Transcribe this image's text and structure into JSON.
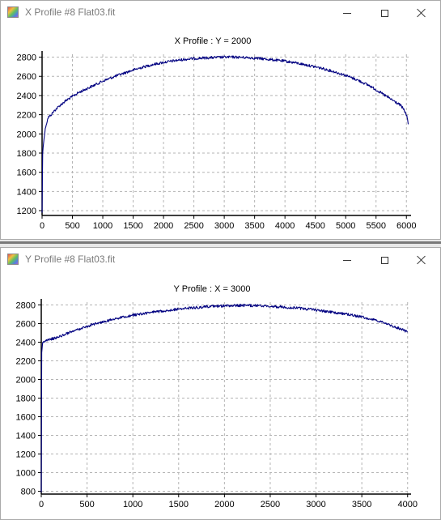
{
  "windows": [
    {
      "id": "x",
      "title": "X Profile #8 Flat03.fit",
      "chart_data": {
        "type": "line",
        "title": "X Profile :    Y = 2000",
        "xlabel": "",
        "ylabel": "",
        "xlim": [
          0,
          6050
        ],
        "ylim": [
          1150,
          2830
        ],
        "xticks": [
          0,
          500,
          1000,
          1500,
          2000,
          2500,
          3000,
          3500,
          4000,
          4500,
          5000,
          5500,
          6000
        ],
        "yticks": [
          1200,
          1400,
          1600,
          1800,
          2000,
          2200,
          2400,
          2600,
          2800
        ],
        "grid": true,
        "legend": "none",
        "line_color": "#000080",
        "series": [
          {
            "x": [
              0,
              10,
              30,
              60,
              100,
              150,
              200,
              300,
              400,
              500,
              600,
              700,
              800,
              900,
              1000,
              1200,
              1400,
              1600,
              1800,
              2000,
              2200,
              2400,
              2600,
              2800,
              3000,
              3200,
              3400,
              3600,
              3800,
              4000,
              4200,
              4400,
              4600,
              4800,
              5000,
              5200,
              5400,
              5600,
              5700,
              5800,
              5900,
              5950,
              6000,
              6020,
              6030
            ],
            "y": [
              1180,
              1800,
              1950,
              2080,
              2170,
              2200,
              2240,
              2300,
              2350,
              2390,
              2430,
              2460,
              2490,
              2520,
              2550,
              2600,
              2645,
              2685,
              2720,
              2745,
              2765,
              2780,
              2790,
              2795,
              2800,
              2800,
              2795,
              2785,
              2772,
              2758,
              2738,
              2712,
              2685,
              2650,
              2610,
              2560,
              2500,
              2420,
              2380,
              2340,
              2300,
              2260,
              2200,
              2150,
              2100
            ]
          }
        ]
      }
    },
    {
      "id": "y",
      "title": "Y Profile #8 Flat03.fit",
      "chart_data": {
        "type": "line",
        "title": "Y Profile :    X = 3000",
        "xlabel": "",
        "ylabel": "",
        "xlim": [
          0,
          4020
        ],
        "ylim": [
          770,
          2830
        ],
        "xticks": [
          0,
          500,
          1000,
          1500,
          2000,
          2500,
          3000,
          3500,
          4000
        ],
        "yticks": [
          800,
          1000,
          1200,
          1400,
          1600,
          1800,
          2000,
          2200,
          2400,
          2600,
          2800
        ],
        "grid": true,
        "legend": "none",
        "line_color": "#000080",
        "series": [
          {
            "x": [
              0,
              5,
              15,
              30,
              100,
              200,
              300,
              400,
              500,
              600,
              700,
              800,
              900,
              1000,
              1200,
              1400,
              1600,
              1800,
              2000,
              2200,
              2400,
              2600,
              2800,
              3000,
              3200,
              3400,
              3600,
              3700,
              3800,
              3900,
              4000
            ],
            "y": [
              790,
              2300,
              2400,
              2405,
              2430,
              2460,
              2500,
              2535,
              2570,
              2600,
              2625,
              2650,
              2670,
              2690,
              2720,
              2745,
              2765,
              2780,
              2790,
              2795,
              2790,
              2780,
              2765,
              2745,
              2720,
              2690,
              2650,
              2620,
              2585,
              2550,
              2510
            ]
          }
        ]
      }
    }
  ]
}
